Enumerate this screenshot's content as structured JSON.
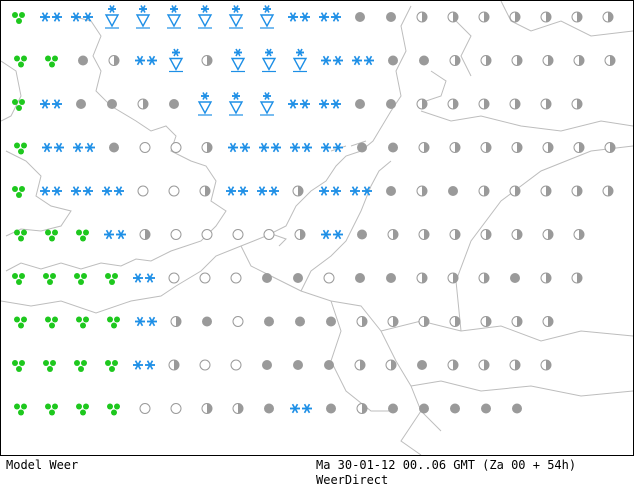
{
  "colors": {
    "snow": "#1e8fe6",
    "rain_showers": "#1ec81e",
    "overcast": "#9a9a9a",
    "coastline": "#bdbdbd",
    "border": "#000000"
  },
  "legend": {
    "model_label": "Model Weer",
    "validity_label": "Ma 30-01-12 00..06 GMT (Za 00 + 54h)",
    "source_label": "WeerDirect"
  },
  "symbol_types": {
    "snow": "double-snowflake-icon",
    "snow_showers": "snow-shower-triangle-icon",
    "showers": "green-rain-drops-icon",
    "overcast": "filled-grey-circle-icon",
    "partly_cloudy": "half-grey-circle-icon",
    "clear": "open-circle-icon"
  },
  "weather_grid": [
    [
      "showers",
      "snow",
      "snow",
      "snow_showers",
      "snow_showers",
      "snow_showers",
      "snow_showers",
      "snow_showers",
      "snow_showers",
      "snow",
      "snow",
      "overcast",
      "overcast",
      "partly_cloudy",
      "partly_cloudy",
      "partly_cloudy",
      "partly_cloudy",
      "partly_cloudy",
      "partly_cloudy",
      "partly_cloudy"
    ],
    [
      "showers",
      "showers",
      "overcast",
      "partly_cloudy",
      "snow",
      "snow_showers",
      "partly_cloudy",
      "snow_showers",
      "snow_showers",
      "snow_showers",
      "snow",
      "snow",
      "overcast",
      "overcast",
      "partly_cloudy",
      "partly_cloudy",
      "partly_cloudy",
      "partly_cloudy",
      "partly_cloudy",
      "partly_cloudy"
    ],
    [
      "showers",
      "snow",
      "overcast",
      "overcast",
      "partly_cloudy",
      "overcast",
      "snow_showers",
      "snow_showers",
      "snow_showers",
      "snow",
      "snow",
      "overcast",
      "overcast",
      "partly_cloudy",
      "partly_cloudy",
      "partly_cloudy",
      "partly_cloudy",
      "partly_cloudy",
      "partly_cloudy"
    ],
    [
      "showers",
      "snow",
      "snow",
      "overcast",
      "clear",
      "clear",
      "partly_cloudy",
      "snow",
      "snow",
      "snow",
      "snow",
      "overcast",
      "overcast",
      "partly_cloudy",
      "partly_cloudy",
      "partly_cloudy",
      "partly_cloudy",
      "partly_cloudy",
      "partly_cloudy",
      "partly_cloudy"
    ],
    [
      "showers",
      "snow",
      "snow",
      "snow",
      "clear",
      "clear",
      "partly_cloudy",
      "snow",
      "snow",
      "partly_cloudy",
      "snow",
      "snow",
      "overcast",
      "partly_cloudy",
      "overcast",
      "partly_cloudy",
      "partly_cloudy",
      "partly_cloudy",
      "partly_cloudy",
      "partly_cloudy"
    ],
    [
      "showers",
      "showers",
      "showers",
      "snow",
      "partly_cloudy",
      "clear",
      "clear",
      "clear",
      "clear",
      "partly_cloudy",
      "snow",
      "overcast",
      "partly_cloudy",
      "partly_cloudy",
      "partly_cloudy",
      "partly_cloudy",
      "partly_cloudy",
      "partly_cloudy",
      "partly_cloudy"
    ],
    [
      "showers",
      "showers",
      "showers",
      "showers",
      "snow",
      "clear",
      "clear",
      "clear",
      "overcast",
      "overcast",
      "clear",
      "overcast",
      "overcast",
      "partly_cloudy",
      "partly_cloudy",
      "partly_cloudy",
      "overcast",
      "partly_cloudy",
      "partly_cloudy"
    ],
    [
      "showers",
      "showers",
      "showers",
      "showers",
      "snow",
      "partly_cloudy",
      "overcast",
      "clear",
      "overcast",
      "overcast",
      "overcast",
      "partly_cloudy",
      "partly_cloudy",
      "partly_cloudy",
      "partly_cloudy",
      "partly_cloudy",
      "partly_cloudy",
      "partly_cloudy"
    ],
    [
      "showers",
      "showers",
      "showers",
      "showers",
      "snow",
      "partly_cloudy",
      "clear",
      "clear",
      "overcast",
      "overcast",
      "overcast",
      "partly_cloudy",
      "partly_cloudy",
      "overcast",
      "partly_cloudy",
      "partly_cloudy",
      "partly_cloudy",
      "partly_cloudy"
    ],
    [
      "showers",
      "showers",
      "showers",
      "showers",
      "clear",
      "clear",
      "partly_cloudy",
      "partly_cloudy",
      "overcast",
      "snow",
      "overcast",
      "partly_cloudy",
      "overcast",
      "overcast",
      "overcast",
      "overcast",
      "overcast"
    ]
  ]
}
